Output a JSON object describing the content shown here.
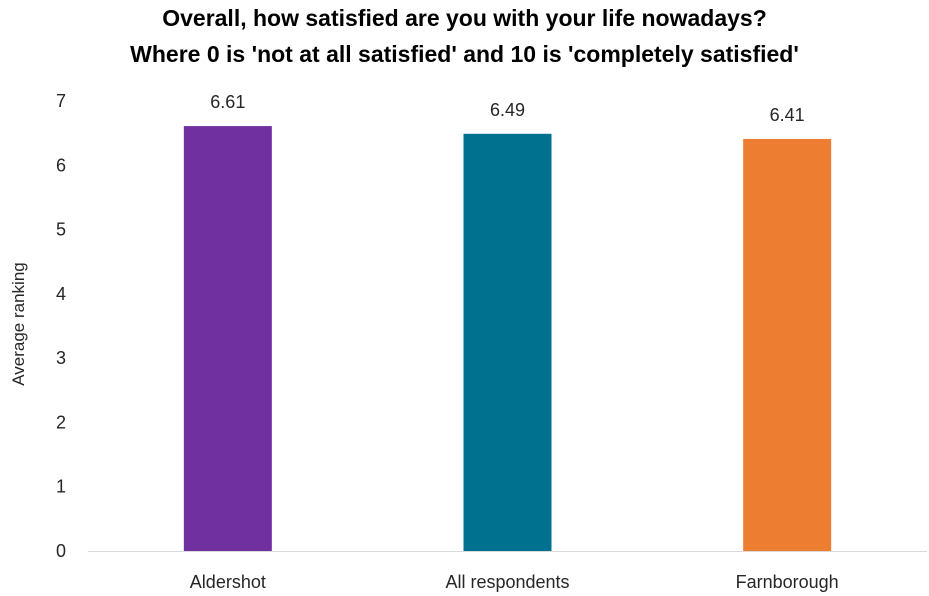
{
  "chart_data": {
    "type": "bar",
    "title": "Overall, how satisfied are you with your life nowadays?",
    "subtitle": "Where 0 is 'not at all satisfied' and 10 is 'completely satisfied'",
    "xlabel": "",
    "ylabel": "Average ranking",
    "categories": [
      "Aldershot",
      "All respondents",
      "Farnborough"
    ],
    "values": [
      6.61,
      6.49,
      6.41
    ],
    "data_labels": [
      "6.61",
      "6.49",
      "6.41"
    ],
    "colors": [
      "#7030a0",
      "#00728f",
      "#ed7d31"
    ],
    "ylim": [
      0,
      7
    ],
    "yticks": [
      "0",
      "1",
      "2",
      "3",
      "4",
      "5",
      "6",
      "7"
    ],
    "grid": false,
    "legend": "none"
  }
}
